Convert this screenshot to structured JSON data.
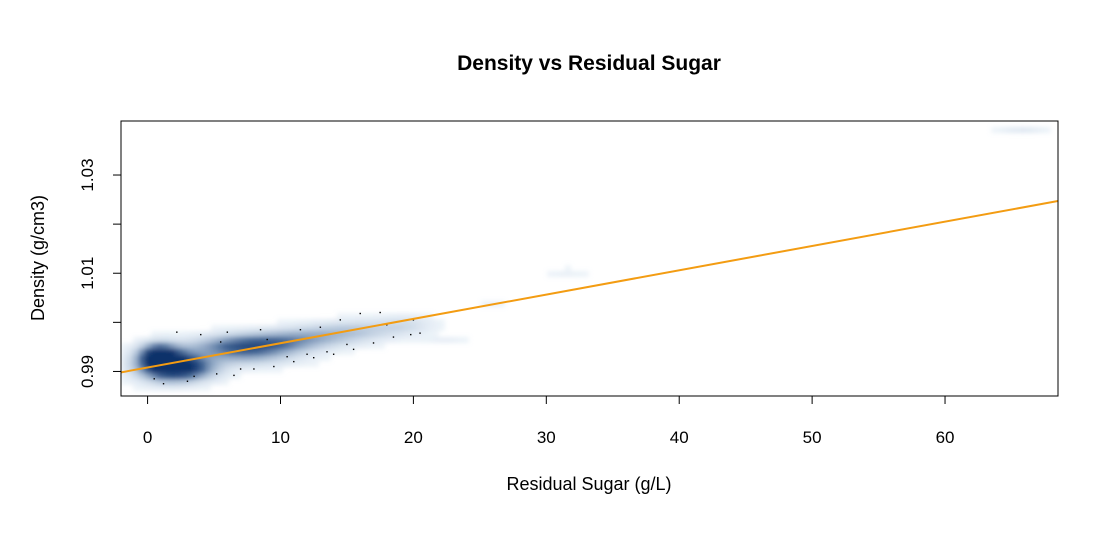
{
  "chart_data": {
    "type": "scatter",
    "title": "Density vs Residual Sugar",
    "xlabel": "Residual Sugar (g/L)",
    "ylabel": "Density (g/cm3)",
    "x_ticks": [
      0,
      10,
      20,
      30,
      40,
      50,
      60
    ],
    "x_tick_labels": [
      "0",
      "10",
      "20",
      "30",
      "40",
      "50",
      "60"
    ],
    "y_ticks": [
      0.99,
      1.0,
      1.01,
      1.02,
      1.03
    ],
    "y_tick_labels": [
      "0.99",
      "",
      "1.01",
      "",
      "1.03"
    ],
    "xlim": [
      -2,
      68.5
    ],
    "ylim": [
      0.985,
      1.041
    ],
    "grid": false,
    "legend": "none",
    "rendering": "smoothed density scatter",
    "density_color": "#08306b",
    "density_color_light": "#c6dbef",
    "regression_line": {
      "intercept": 0.9908,
      "slope": 0.000495,
      "color": "#f39c12"
    },
    "density_blobs": [
      {
        "x": 1.5,
        "y": 0.9915,
        "sx": 1.6,
        "sy": 0.0022,
        "w": 1.0
      },
      {
        "x": 0.8,
        "y": 0.9935,
        "sx": 0.9,
        "sy": 0.0015,
        "w": 0.75
      },
      {
        "x": 3.0,
        "y": 0.9905,
        "sx": 1.8,
        "sy": 0.0016,
        "w": 0.55
      },
      {
        "x": 6.5,
        "y": 0.995,
        "sx": 2.2,
        "sy": 0.0016,
        "w": 0.6
      },
      {
        "x": 9.5,
        "y": 0.9955,
        "sx": 2.2,
        "sy": 0.0015,
        "w": 0.45
      },
      {
        "x": 12.5,
        "y": 0.997,
        "sx": 2.5,
        "sy": 0.0015,
        "w": 0.35
      },
      {
        "x": 16.0,
        "y": 0.9985,
        "sx": 2.2,
        "sy": 0.0014,
        "w": 0.25
      },
      {
        "x": 19.5,
        "y": 0.9995,
        "sx": 1.5,
        "sy": 0.0013,
        "w": 0.18
      },
      {
        "x": 8.0,
        "y": 0.9925,
        "sx": 2.5,
        "sy": 0.0012,
        "w": 0.2
      },
      {
        "x": 22.5,
        "y": 0.9965,
        "sx": 1.2,
        "sy": 0.0005,
        "w": 0.08
      },
      {
        "x": 26.0,
        "y": 1.0035,
        "sx": 0.9,
        "sy": 0.0005,
        "w": 0.07
      },
      {
        "x": 31.5,
        "y": 1.0103,
        "sx": 1.2,
        "sy": 0.0005,
        "w": 0.1
      },
      {
        "x": 65.8,
        "y": 1.039,
        "sx": 1.3,
        "sy": 0.0004,
        "w": 0.14
      }
    ],
    "outlier_points": [
      [
        1.2,
        0.9875
      ],
      [
        3.0,
        0.988
      ],
      [
        5.2,
        0.9895
      ],
      [
        6.5,
        0.9892
      ],
      [
        8.0,
        0.9905
      ],
      [
        9.5,
        0.991
      ],
      [
        11.0,
        0.992
      ],
      [
        12.5,
        0.9928
      ],
      [
        14.0,
        0.9935
      ],
      [
        15.5,
        0.9945
      ],
      [
        17.0,
        0.9958
      ],
      [
        18.5,
        0.997
      ],
      [
        19.8,
        0.9975
      ],
      [
        20.5,
        0.9978
      ],
      [
        16.0,
        1.0018
      ],
      [
        17.5,
        1.002
      ],
      [
        13.0,
        0.999
      ],
      [
        11.5,
        0.9985
      ],
      [
        6.0,
        0.998
      ],
      [
        8.5,
        0.9985
      ],
      [
        2.2,
        0.998
      ],
      [
        4.0,
        0.9975
      ],
      [
        10.5,
        0.993
      ],
      [
        13.5,
        0.994
      ],
      [
        18.0,
        0.9995
      ],
      [
        20.0,
        1.0005
      ],
      [
        7.0,
        0.9905
      ],
      [
        12.0,
        0.9935
      ],
      [
        15.0,
        0.9955
      ],
      [
        3.5,
        0.989
      ],
      [
        0.5,
        0.9885
      ],
      [
        14.5,
        1.0005
      ],
      [
        9.0,
        0.9965
      ],
      [
        5.5,
        0.996
      ]
    ]
  }
}
